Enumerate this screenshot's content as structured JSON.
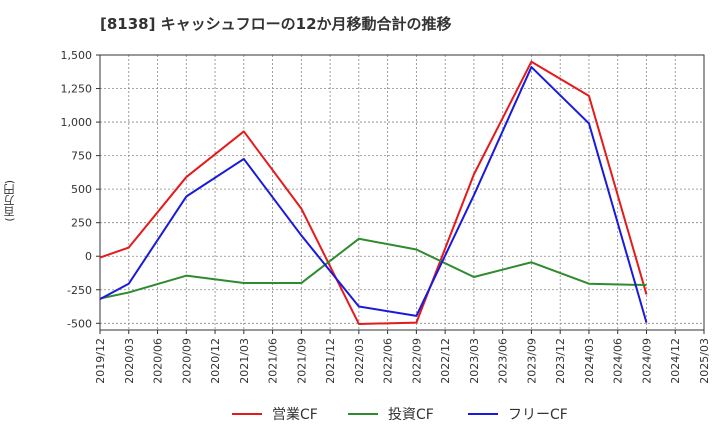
{
  "chart_data": {
    "type": "line",
    "title": "[8138]  キャッシュフローの12か月移動合計の推移",
    "ylabel": "(百万円)",
    "xlabel": "",
    "ylim": [
      -550,
      1500
    ],
    "yticks": [
      1500,
      1250,
      1000,
      750,
      500,
      250,
      0,
      -250,
      -500
    ],
    "ytick_labels": [
      "1,500",
      "1,250",
      "1,000",
      "750",
      "500",
      "250",
      "0",
      "-250",
      "-500"
    ],
    "grid": true,
    "legend_position": "bottom",
    "categories": [
      "2019/12",
      "2020/03",
      "2020/06",
      "2020/09",
      "2020/12",
      "2021/03",
      "2021/06",
      "2021/09",
      "2021/12",
      "2022/03",
      "2022/06",
      "2022/09",
      "2022/12",
      "2023/03",
      "2023/06",
      "2023/09",
      "2023/12",
      "2024/03",
      "2024/06",
      "2024/09",
      "2024/12",
      "2025/03"
    ],
    "series": [
      {
        "name": "営業CF",
        "color": "#e41a1c",
        "points": [
          {
            "x": "2019/12",
            "y": -10
          },
          {
            "x": "2020/03",
            "y": 65
          },
          {
            "x": "2020/09",
            "y": 590
          },
          {
            "x": "2021/03",
            "y": 930
          },
          {
            "x": "2021/09",
            "y": 355
          },
          {
            "x": "2022/03",
            "y": -505
          },
          {
            "x": "2022/09",
            "y": -495
          },
          {
            "x": "2023/03",
            "y": 610
          },
          {
            "x": "2023/09",
            "y": 1450
          },
          {
            "x": "2024/03",
            "y": 1195
          },
          {
            "x": "2024/09",
            "y": -285
          }
        ]
      },
      {
        "name": "投資CF",
        "color": "#2e8b2e",
        "points": [
          {
            "x": "2019/12",
            "y": -315
          },
          {
            "x": "2020/03",
            "y": -270
          },
          {
            "x": "2020/09",
            "y": -145
          },
          {
            "x": "2021/03",
            "y": -200
          },
          {
            "x": "2021/09",
            "y": -200
          },
          {
            "x": "2022/03",
            "y": 130
          },
          {
            "x": "2022/09",
            "y": 50
          },
          {
            "x": "2023/03",
            "y": -155
          },
          {
            "x": "2023/09",
            "y": -45
          },
          {
            "x": "2024/03",
            "y": -205
          },
          {
            "x": "2024/09",
            "y": -215
          }
        ]
      },
      {
        "name": "フリーCF",
        "color": "#1a1adb",
        "points": [
          {
            "x": "2019/12",
            "y": -320
          },
          {
            "x": "2020/03",
            "y": -205
          },
          {
            "x": "2020/09",
            "y": 445
          },
          {
            "x": "2021/03",
            "y": 725
          },
          {
            "x": "2021/09",
            "y": 155
          },
          {
            "x": "2022/03",
            "y": -375
          },
          {
            "x": "2022/09",
            "y": -445
          },
          {
            "x": "2023/03",
            "y": 455
          },
          {
            "x": "2023/09",
            "y": 1410
          },
          {
            "x": "2024/03",
            "y": 990
          },
          {
            "x": "2024/09",
            "y": -495
          }
        ]
      }
    ]
  }
}
